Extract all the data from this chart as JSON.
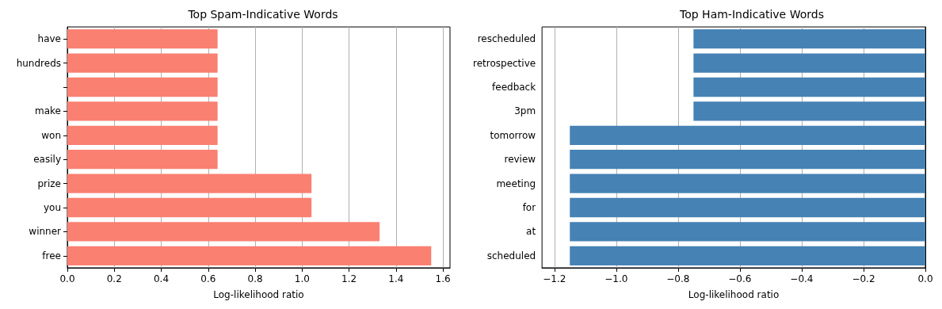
{
  "chart_data": [
    {
      "type": "bar",
      "orientation": "horizontal",
      "title": "Top Spam-Indicative Words",
      "xlabel": "Log-likelihood ratio",
      "categories": [
        "have",
        "hundreds",
        null,
        "make",
        "won",
        "easily",
        "prize",
        "you",
        "winner",
        "free"
      ],
      "values": [
        0.64,
        0.64,
        0.64,
        0.64,
        0.64,
        0.64,
        1.04,
        1.04,
        1.33,
        1.55
      ],
      "color": "#fa8072",
      "xlim": [
        0,
        1.63
      ],
      "xticks": [
        {
          "value": 0,
          "label": "0.0"
        },
        {
          "value": 0.2,
          "label": "0.2"
        },
        {
          "value": 0.4,
          "label": "0.4"
        },
        {
          "value": 0.6,
          "label": "0.6"
        },
        {
          "value": 0.8,
          "label": "0.8"
        },
        {
          "value": 1.0,
          "label": "1.0"
        },
        {
          "value": 1.2,
          "label": "1.2"
        },
        {
          "value": 1.4,
          "label": "1.4"
        },
        {
          "value": 1.6,
          "label": "1.6"
        }
      ],
      "grid": "x"
    },
    {
      "type": "bar",
      "orientation": "horizontal",
      "title": "Top Ham-Indicative Words",
      "xlabel": "Log-likelihood ratio",
      "categories": [
        "rescheduled",
        "retrospective",
        "feedback",
        "3pm",
        "tomorrow",
        "review",
        "meeting",
        "for",
        "at",
        "scheduled"
      ],
      "values": [
        -0.75,
        -0.75,
        -0.75,
        -0.75,
        -1.15,
        -1.15,
        -1.15,
        -1.15,
        -1.15,
        -1.15
      ],
      "color": "#4682b4",
      "xlim": [
        -1.24,
        0
      ],
      "xticks": [
        {
          "value": -1.2,
          "label": "−1.2"
        },
        {
          "value": -1.0,
          "label": "−1.0"
        },
        {
          "value": -0.8,
          "label": "−0.8"
        },
        {
          "value": -0.6,
          "label": "−0.6"
        },
        {
          "value": -0.4,
          "label": "−0.4"
        },
        {
          "value": -0.2,
          "label": "−0.2"
        },
        {
          "value": 0,
          "label": "0.0"
        }
      ],
      "grid": "x"
    }
  ]
}
